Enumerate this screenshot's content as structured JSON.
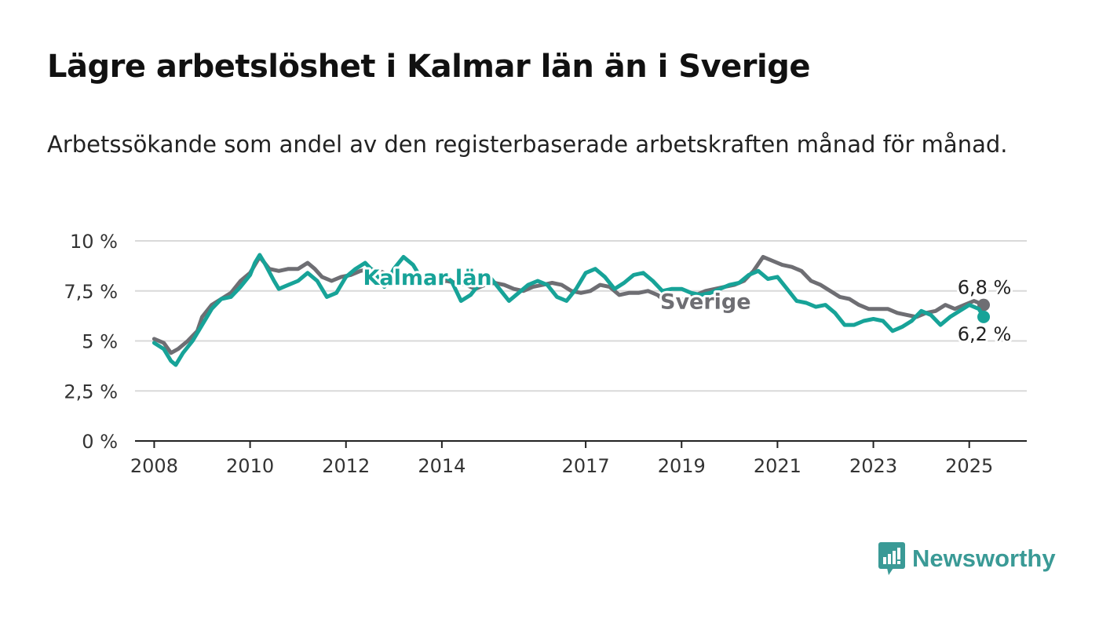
{
  "title": "Lägre arbetslöshet i Kalmar län än i Sverige",
  "subtitle": "Arbetssökande som andel av den registerbaserade arbetskraften månad för månad.",
  "brand": {
    "name": "Newsworthy",
    "icon": "bar-chart-speech-bubble-icon",
    "color": "#3a9a96"
  },
  "chart_data": {
    "type": "line",
    "ylim": [
      0,
      10
    ],
    "xlim": [
      2007.6,
      2026.2
    ],
    "y_ticks": [
      {
        "value": 0,
        "label": "0 %"
      },
      {
        "value": 2.5,
        "label": "2,5 %"
      },
      {
        "value": 5,
        "label": "5 %"
      },
      {
        "value": 7.5,
        "label": "7,5 %"
      },
      {
        "value": 10,
        "label": "10 %"
      }
    ],
    "x_ticks": [
      {
        "value": 2008,
        "label": "2008"
      },
      {
        "value": 2010,
        "label": "2010"
      },
      {
        "value": 2012,
        "label": "2012"
      },
      {
        "value": 2014,
        "label": "2014"
      },
      {
        "value": 2017,
        "label": "2017"
      },
      {
        "value": 2019,
        "label": "2019"
      },
      {
        "value": 2021,
        "label": "2021"
      },
      {
        "value": 2023,
        "label": "2023"
      },
      {
        "value": 2025,
        "label": "2025"
      }
    ],
    "grid": true,
    "series": [
      {
        "name": "Sverige",
        "color": "#6e6e73",
        "end_label": "6,8 %",
        "points": [
          [
            2008.0,
            5.1
          ],
          [
            2008.2,
            4.9
          ],
          [
            2008.35,
            4.4
          ],
          [
            2008.5,
            4.6
          ],
          [
            2008.7,
            5.0
          ],
          [
            2008.9,
            5.5
          ],
          [
            2009.0,
            6.2
          ],
          [
            2009.2,
            6.8
          ],
          [
            2009.4,
            7.1
          ],
          [
            2009.6,
            7.4
          ],
          [
            2009.8,
            8.0
          ],
          [
            2010.0,
            8.4
          ],
          [
            2010.1,
            8.8
          ],
          [
            2010.2,
            9.2
          ],
          [
            2010.3,
            8.9
          ],
          [
            2010.4,
            8.6
          ],
          [
            2010.6,
            8.5
          ],
          [
            2010.8,
            8.6
          ],
          [
            2011.0,
            8.6
          ],
          [
            2011.2,
            8.9
          ],
          [
            2011.35,
            8.6
          ],
          [
            2011.5,
            8.2
          ],
          [
            2011.7,
            8.0
          ],
          [
            2011.9,
            8.2
          ],
          [
            2012.1,
            8.3
          ],
          [
            2012.3,
            8.5
          ],
          [
            2012.5,
            8.6
          ],
          [
            2012.7,
            8.5
          ],
          [
            2012.9,
            8.3
          ],
          [
            2013.1,
            8.2
          ],
          [
            2013.3,
            8.1
          ],
          [
            2013.5,
            8.2
          ],
          [
            2013.7,
            8.0
          ],
          [
            2013.9,
            7.9
          ],
          [
            2014.1,
            8.0
          ],
          [
            2014.3,
            7.9
          ],
          [
            2014.5,
            7.8
          ],
          [
            2014.7,
            7.6
          ],
          [
            2014.9,
            7.8
          ],
          [
            2015.1,
            7.9
          ],
          [
            2015.3,
            7.8
          ],
          [
            2015.5,
            7.6
          ],
          [
            2015.7,
            7.5
          ],
          [
            2015.9,
            7.7
          ],
          [
            2016.1,
            7.8
          ],
          [
            2016.3,
            7.9
          ],
          [
            2016.5,
            7.8
          ],
          [
            2016.7,
            7.5
          ],
          [
            2016.9,
            7.4
          ],
          [
            2017.1,
            7.5
          ],
          [
            2017.3,
            7.8
          ],
          [
            2017.5,
            7.7
          ],
          [
            2017.7,
            7.3
          ],
          [
            2017.9,
            7.4
          ],
          [
            2018.1,
            7.4
          ],
          [
            2018.3,
            7.5
          ],
          [
            2018.5,
            7.3
          ],
          [
            2018.7,
            6.9
          ],
          [
            2018.9,
            7.0
          ],
          [
            2019.1,
            7.1
          ],
          [
            2019.3,
            7.3
          ],
          [
            2019.5,
            7.5
          ],
          [
            2019.7,
            7.6
          ],
          [
            2019.9,
            7.7
          ],
          [
            2020.1,
            7.8
          ],
          [
            2020.3,
            8.0
          ],
          [
            2020.5,
            8.5
          ],
          [
            2020.7,
            9.2
          ],
          [
            2020.9,
            9.0
          ],
          [
            2021.1,
            8.8
          ],
          [
            2021.3,
            8.7
          ],
          [
            2021.5,
            8.5
          ],
          [
            2021.7,
            8.0
          ],
          [
            2021.9,
            7.8
          ],
          [
            2022.1,
            7.5
          ],
          [
            2022.3,
            7.2
          ],
          [
            2022.5,
            7.1
          ],
          [
            2022.7,
            6.8
          ],
          [
            2022.9,
            6.6
          ],
          [
            2023.1,
            6.6
          ],
          [
            2023.3,
            6.6
          ],
          [
            2023.5,
            6.4
          ],
          [
            2023.7,
            6.3
          ],
          [
            2023.9,
            6.2
          ],
          [
            2024.1,
            6.4
          ],
          [
            2024.3,
            6.5
          ],
          [
            2024.5,
            6.8
          ],
          [
            2024.7,
            6.6
          ],
          [
            2024.9,
            6.8
          ],
          [
            2025.1,
            7.0
          ],
          [
            2025.3,
            6.8
          ]
        ]
      },
      {
        "name": "Kalmar län",
        "color": "#17a398",
        "end_label": "6,2 %",
        "points": [
          [
            2008.0,
            4.9
          ],
          [
            2008.2,
            4.6
          ],
          [
            2008.35,
            4.0
          ],
          [
            2008.45,
            3.8
          ],
          [
            2008.6,
            4.4
          ],
          [
            2008.8,
            5.0
          ],
          [
            2009.0,
            5.8
          ],
          [
            2009.2,
            6.6
          ],
          [
            2009.4,
            7.1
          ],
          [
            2009.6,
            7.2
          ],
          [
            2009.8,
            7.7
          ],
          [
            2010.0,
            8.3
          ],
          [
            2010.1,
            8.9
          ],
          [
            2010.2,
            9.3
          ],
          [
            2010.3,
            8.9
          ],
          [
            2010.5,
            8.0
          ],
          [
            2010.6,
            7.6
          ],
          [
            2010.8,
            7.8
          ],
          [
            2011.0,
            8.0
          ],
          [
            2011.2,
            8.4
          ],
          [
            2011.4,
            8.0
          ],
          [
            2011.6,
            7.2
          ],
          [
            2011.8,
            7.4
          ],
          [
            2012.0,
            8.2
          ],
          [
            2012.2,
            8.6
          ],
          [
            2012.4,
            8.9
          ],
          [
            2012.6,
            8.4
          ],
          [
            2012.8,
            7.7
          ],
          [
            2013.0,
            8.6
          ],
          [
            2013.2,
            9.2
          ],
          [
            2013.4,
            8.8
          ],
          [
            2013.6,
            8.0
          ],
          [
            2013.8,
            7.8
          ],
          [
            2014.0,
            8.3
          ],
          [
            2014.2,
            8.0
          ],
          [
            2014.4,
            7.0
          ],
          [
            2014.6,
            7.3
          ],
          [
            2014.8,
            7.9
          ],
          [
            2015.0,
            8.2
          ],
          [
            2015.2,
            7.6
          ],
          [
            2015.4,
            7.0
          ],
          [
            2015.6,
            7.4
          ],
          [
            2015.8,
            7.8
          ],
          [
            2016.0,
            8.0
          ],
          [
            2016.2,
            7.8
          ],
          [
            2016.4,
            7.2
          ],
          [
            2016.6,
            7.0
          ],
          [
            2016.8,
            7.6
          ],
          [
            2017.0,
            8.4
          ],
          [
            2017.2,
            8.6
          ],
          [
            2017.4,
            8.2
          ],
          [
            2017.6,
            7.6
          ],
          [
            2017.8,
            7.9
          ],
          [
            2018.0,
            8.3
          ],
          [
            2018.2,
            8.4
          ],
          [
            2018.4,
            8.0
          ],
          [
            2018.6,
            7.5
          ],
          [
            2018.8,
            7.6
          ],
          [
            2019.0,
            7.6
          ],
          [
            2019.2,
            7.4
          ],
          [
            2019.4,
            7.3
          ],
          [
            2019.6,
            7.4
          ],
          [
            2019.8,
            7.6
          ],
          [
            2020.0,
            7.8
          ],
          [
            2020.2,
            7.9
          ],
          [
            2020.4,
            8.3
          ],
          [
            2020.6,
            8.5
          ],
          [
            2020.8,
            8.1
          ],
          [
            2021.0,
            8.2
          ],
          [
            2021.2,
            7.6
          ],
          [
            2021.4,
            7.0
          ],
          [
            2021.6,
            6.9
          ],
          [
            2021.8,
            6.7
          ],
          [
            2022.0,
            6.8
          ],
          [
            2022.2,
            6.4
          ],
          [
            2022.4,
            5.8
          ],
          [
            2022.6,
            5.8
          ],
          [
            2022.8,
            6.0
          ],
          [
            2023.0,
            6.1
          ],
          [
            2023.2,
            6.0
          ],
          [
            2023.4,
            5.5
          ],
          [
            2023.6,
            5.7
          ],
          [
            2023.8,
            6.0
          ],
          [
            2024.0,
            6.5
          ],
          [
            2024.2,
            6.3
          ],
          [
            2024.4,
            5.8
          ],
          [
            2024.6,
            6.2
          ],
          [
            2024.8,
            6.5
          ],
          [
            2025.0,
            6.8
          ],
          [
            2025.2,
            6.6
          ],
          [
            2025.3,
            6.2
          ]
        ]
      }
    ]
  }
}
